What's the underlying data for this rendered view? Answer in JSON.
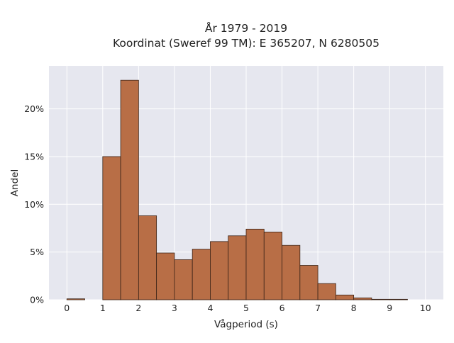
{
  "chart_data": {
    "type": "bar",
    "title": "År 1979 - 2019",
    "subtitle": "Koordinat (Sweref 99 TM): E 365207, N 6280505",
    "xlabel": "Vågperiod (s)",
    "ylabel": "Andel",
    "xlim": [
      -0.5,
      10.5
    ],
    "ylim": [
      0,
      24.5
    ],
    "x_ticks": [
      0,
      1,
      2,
      3,
      4,
      5,
      6,
      7,
      8,
      9,
      10
    ],
    "y_ticks": [
      0,
      5,
      10,
      15,
      20
    ],
    "y_tick_labels": [
      "0%",
      "5%",
      "10%",
      "15%",
      "20%"
    ],
    "bin_width": 0.5,
    "bins": [
      {
        "start": 0.0,
        "end": 0.5,
        "value": 0.1
      },
      {
        "start": 0.5,
        "end": 1.0,
        "value": 0.0
      },
      {
        "start": 1.0,
        "end": 1.5,
        "value": 15.0
      },
      {
        "start": 1.5,
        "end": 2.0,
        "value": 23.0
      },
      {
        "start": 2.0,
        "end": 2.5,
        "value": 8.8
      },
      {
        "start": 2.5,
        "end": 3.0,
        "value": 4.9
      },
      {
        "start": 3.0,
        "end": 3.5,
        "value": 4.2
      },
      {
        "start": 3.5,
        "end": 4.0,
        "value": 5.3
      },
      {
        "start": 4.0,
        "end": 4.5,
        "value": 6.1
      },
      {
        "start": 4.5,
        "end": 5.0,
        "value": 6.7
      },
      {
        "start": 5.0,
        "end": 5.5,
        "value": 7.4
      },
      {
        "start": 5.5,
        "end": 6.0,
        "value": 7.1
      },
      {
        "start": 6.0,
        "end": 6.5,
        "value": 5.7
      },
      {
        "start": 6.5,
        "end": 7.0,
        "value": 3.6
      },
      {
        "start": 7.0,
        "end": 7.5,
        "value": 1.7
      },
      {
        "start": 7.5,
        "end": 8.0,
        "value": 0.5
      },
      {
        "start": 8.0,
        "end": 8.5,
        "value": 0.2
      },
      {
        "start": 8.5,
        "end": 9.0,
        "value": 0.05
      },
      {
        "start": 9.0,
        "end": 9.5,
        "value": 0.05
      }
    ],
    "grid": true,
    "colors": {
      "bar_fill": "#b86e46",
      "bar_stroke": "#3b2418",
      "plot_background": "#e6e7ef",
      "grid": "#ffffff"
    }
  }
}
